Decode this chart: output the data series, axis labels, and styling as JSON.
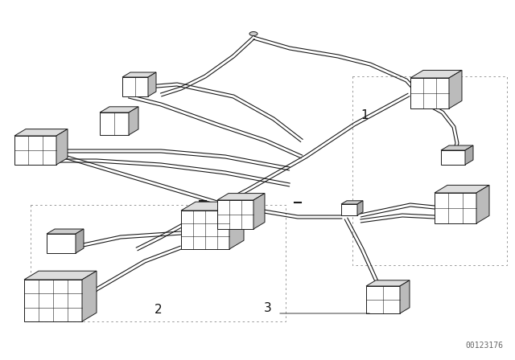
{
  "bg_color": "#ffffff",
  "line_color": "#1a1a1a",
  "fill_color": "#ffffff",
  "shade_color": "#aaaaaa",
  "text_color": "#111111",
  "dot_color": "#aaaaaa",
  "watermark_text": "00123176",
  "watermark_color": "#666666",
  "watermark_fontsize": 7,
  "label_fontsize": 11,
  "lw_wire": 1.0,
  "lw_connector": 0.7,
  "figsize": [
    6.4,
    4.48
  ],
  "dpi": 100,
  "labels": {
    "1": [
      0.685,
      0.575
    ],
    "2": [
      0.295,
      0.165
    ],
    "3": [
      0.505,
      0.165
    ]
  }
}
